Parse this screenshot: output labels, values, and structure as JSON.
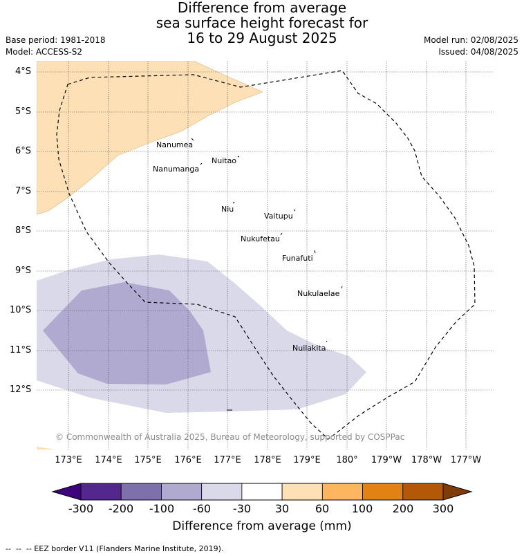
{
  "title": {
    "line1": "Difference from average",
    "line2": "sea surface height forecast for",
    "line3": "16 to 29 August 2025"
  },
  "meta": {
    "base_period": "Base period: 1981-2018",
    "model": "Model: ACCESS-S2",
    "model_run": "Model run: 02/08/2025",
    "issued": "Issued: 04/08/2025"
  },
  "map": {
    "lat_labels": [
      "4°S",
      "5°S",
      "6°S",
      "7°S",
      "8°S",
      "9°S",
      "10°S",
      "11°S",
      "12°S"
    ],
    "lon_labels": [
      "173°E",
      "174°E",
      "175°E",
      "176°E",
      "177°E",
      "178°E",
      "179°E",
      "180°",
      "179°W",
      "178°W",
      "177°W"
    ],
    "places": [
      "Nanumea",
      "Nanumanga",
      "Nuitao",
      "Niu",
      "Vaitupu",
      "Nukufetau",
      "Funafuti",
      "Nukulaelae",
      "Nuilakita"
    ],
    "copyright": "© Commonwealth of Australia 2025, Bureau of Meteorology, supported by COSPPac",
    "colors": {
      "positive_30_60": "#fde0b5",
      "negative_30_60": "#d9d9ea",
      "negative_60_100": "#b0aad1",
      "eez_line": "#000000"
    }
  },
  "colorbar": {
    "labels": [
      "-300",
      "-200",
      "-100",
      "-60",
      "-30",
      "30",
      "60",
      "100",
      "200",
      "300"
    ],
    "colors": [
      "#3f007d",
      "#54278f",
      "#7e71ab",
      "#b0aad1",
      "#d9d9ea",
      "#ffffff",
      "#fde0b5",
      "#fdb560",
      "#e08214",
      "#b35806",
      "#7f3b08"
    ],
    "title": "Difference from average (mm)"
  },
  "footer": {
    "eez": "--  --  -- EEZ border V11 (Flanders Marine Institute, 2019)."
  }
}
